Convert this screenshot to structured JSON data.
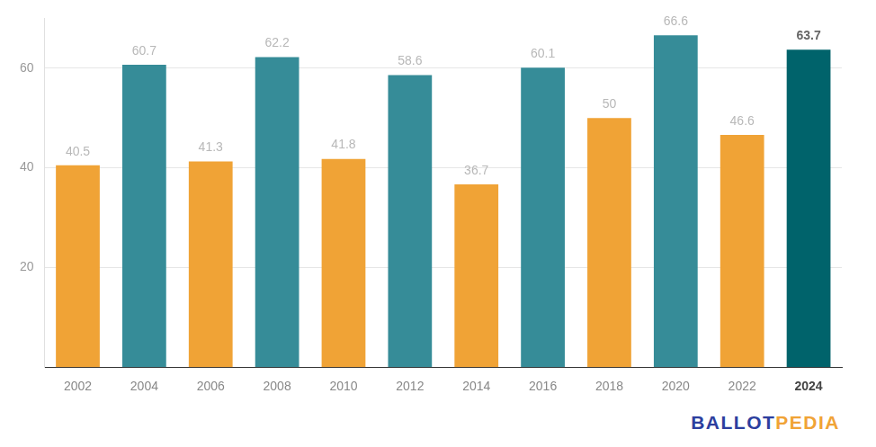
{
  "chart_data": {
    "type": "bar",
    "categories": [
      "2002",
      "2004",
      "2006",
      "2008",
      "2010",
      "2012",
      "2014",
      "2016",
      "2018",
      "2020",
      "2022",
      "2024"
    ],
    "values": [
      40.5,
      60.7,
      41.3,
      62.2,
      41.8,
      58.6,
      36.7,
      60.1,
      50,
      66.6,
      46.6,
      63.7
    ],
    "colors": [
      "#f0a336",
      "#368c98",
      "#f0a336",
      "#368c98",
      "#f0a336",
      "#368c98",
      "#f0a336",
      "#368c98",
      "#f0a336",
      "#368c98",
      "#f0a336",
      "#00636b"
    ],
    "ylim": [
      0,
      70
    ],
    "yticks": [
      20,
      40,
      60
    ],
    "grid": true,
    "data_labels": true
  },
  "logo": [
    "BALLOT",
    "PEDIA"
  ]
}
